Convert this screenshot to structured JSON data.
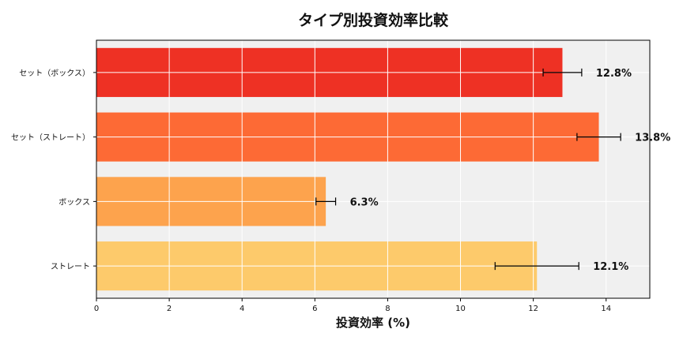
{
  "chart_data": {
    "type": "bar",
    "orientation": "horizontal",
    "title": "タイプ別投資効率比較",
    "xlabel": "投資効率 (%)",
    "ylabel": "",
    "xlim": [
      0,
      15.2
    ],
    "xticks": [
      0,
      2,
      4,
      6,
      8,
      10,
      12,
      14
    ],
    "grid": true,
    "categories": [
      "セット（ボックス）",
      "セット（ストレート）",
      "ボックス",
      "ストレート"
    ],
    "values": [
      12.8,
      13.8,
      6.3,
      12.1
    ],
    "errors": [
      0.53,
      0.6,
      0.27,
      1.15
    ],
    "value_labels": [
      "12.8%",
      "13.8%",
      "6.3%",
      "12.1%"
    ],
    "colors": [
      "#ee3124",
      "#fd6a35",
      "#fda34d",
      "#fdca6b"
    ],
    "background": "#f0f0f0"
  }
}
